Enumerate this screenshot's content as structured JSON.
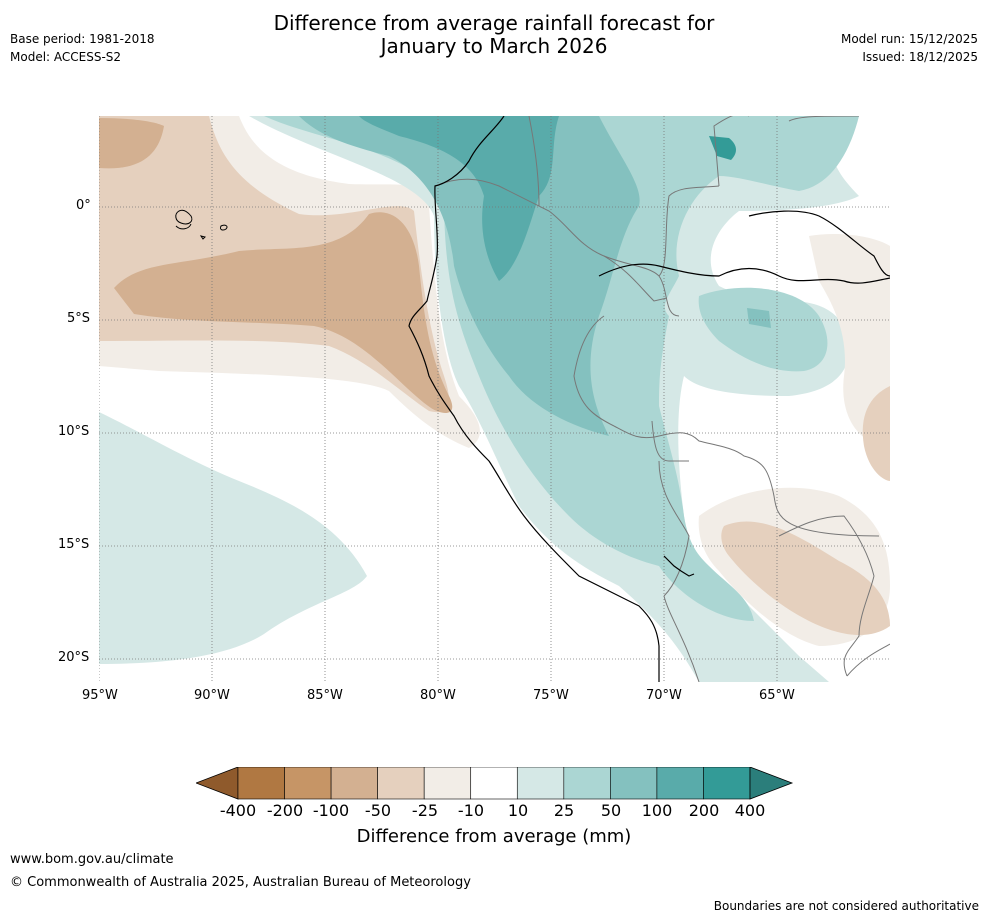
{
  "title": {
    "line1": "Difference from average rainfall forecast for",
    "line2": "January to March 2026"
  },
  "meta_left": {
    "base_period": "Base period: 1981-2018",
    "model": "Model: ACCESS-S2"
  },
  "meta_right": {
    "model_run": "Model run: 15/12/2025",
    "issued": "Issued: 18/12/2025"
  },
  "map": {
    "lat_labels": [
      "0°",
      "5°S",
      "10°S",
      "15°S",
      "20°S"
    ],
    "lon_labels": [
      "95°W",
      "90°W",
      "85°W",
      "80°W",
      "75°W",
      "70°W",
      "65°W"
    ]
  },
  "legend": {
    "title": "Difference from average (mm)",
    "ticks": [
      "-400",
      "-200",
      "-100",
      "-50",
      "-25",
      "-10",
      "10",
      "25",
      "50",
      "100",
      "200",
      "400"
    ],
    "colors": [
      "#8f5a2c",
      "#b07842",
      "#c69566",
      "#d3b091",
      "#e5d0be",
      "#f2ede7",
      "#ffffff",
      "#d5e8e6",
      "#abd6d3",
      "#84c1bf",
      "#59abaa",
      "#339b97",
      "#2b7e7b"
    ]
  },
  "footer": {
    "website": "www.bom.gov.au/climate",
    "copyright": "© Commonwealth of Australia 2025, Australian Bureau of Meteorology",
    "disclaimer": "Boundaries are not considered authoritative"
  }
}
